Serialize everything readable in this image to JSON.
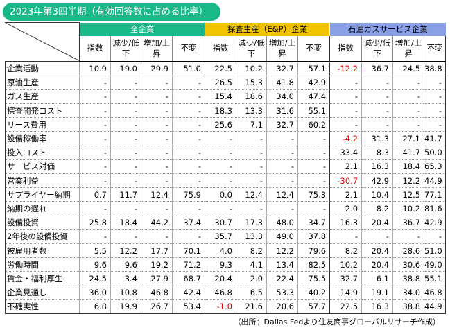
{
  "title": "2023年第3四半期（有効回答数に占める比率）",
  "groups": [
    "全企業",
    "探査生産（E&P）企業",
    "石油ガスサービス企業"
  ],
  "subheaders": [
    "指数",
    "減少/低下",
    "増加/上昇",
    "不変"
  ],
  "rows": [
    {
      "label": "企業活動",
      "cells": [
        "10.9",
        "19.0",
        "29.9",
        "51.0",
        "22.5",
        "10.2",
        "32.7",
        "57.1",
        "-12.2",
        "36.7",
        "24.5",
        "38.8"
      ]
    },
    {
      "label": "原油生産",
      "cells": [
        "-",
        "-",
        "-",
        "-",
        "26.5",
        "15.3",
        "41.8",
        "42.9",
        "-",
        "-",
        "-",
        "-"
      ]
    },
    {
      "label": "ガス生産",
      "cells": [
        "-",
        "-",
        "-",
        "-",
        "15.4",
        "18.6",
        "34.0",
        "47.4",
        "-",
        "-",
        "-",
        "-"
      ]
    },
    {
      "label": "探査開発コスト",
      "cells": [
        "-",
        "-",
        "-",
        "-",
        "18.3",
        "13.3",
        "31.6",
        "55.1",
        "-",
        "-",
        "-",
        "-"
      ]
    },
    {
      "label": "リース費用",
      "cells": [
        "-",
        "-",
        "-",
        "-",
        "25.6",
        "7.1",
        "32.7",
        "60.2",
        "-",
        "-",
        "-",
        "-"
      ]
    },
    {
      "label": "設備稼働率",
      "cells": [
        "-",
        "-",
        "-",
        "-",
        "-",
        "-",
        "-",
        "-",
        "-4.2",
        "31.3",
        "27.1",
        "41.7"
      ]
    },
    {
      "label": "投入コスト",
      "cells": [
        "-",
        "-",
        "-",
        "-",
        "-",
        "-",
        "-",
        "-",
        "33.4",
        "8.3",
        "41.7",
        "50.0"
      ]
    },
    {
      "label": "サービス対価",
      "cells": [
        "-",
        "-",
        "-",
        "-",
        "-",
        "-",
        "-",
        "-",
        "2.1",
        "16.3",
        "18.4",
        "65.3"
      ]
    },
    {
      "label": "営業利益",
      "cells": [
        "-",
        "-",
        "-",
        "-",
        "-",
        "-",
        "-",
        "-",
        "-30.7",
        "42.9",
        "12.2",
        "44.9"
      ]
    },
    {
      "label": "サプライヤー納期",
      "cells": [
        "0.7",
        "11.7",
        "12.4",
        "75.9",
        "0.0",
        "12.4",
        "12.4",
        "75.3",
        "2.1",
        "10.4",
        "12.5",
        "77.1"
      ]
    },
    {
      "label": "納期の遅れ",
      "cells": [
        "-",
        "-",
        "-",
        "-",
        "-",
        "-",
        "-",
        "-",
        "2.0",
        "8.2",
        "10.2",
        "81.6"
      ]
    },
    {
      "label": "設備投資",
      "cells": [
        "25.8",
        "18.4",
        "44.2",
        "37.4",
        "30.7",
        "17.3",
        "48.0",
        "34.7",
        "16.3",
        "20.4",
        "36.7",
        "42.9"
      ]
    },
    {
      "label": "2年後の設備投資",
      "cells": [
        "-",
        "-",
        "-",
        "-",
        "35.7",
        "13.3",
        "49.0",
        "37.8",
        "-",
        "-",
        "-",
        "-"
      ]
    },
    {
      "label": "被雇用者数",
      "cells": [
        "5.5",
        "12.2",
        "17.7",
        "70.1",
        "4.0",
        "8.2",
        "12.2",
        "79.6",
        "8.2",
        "20.4",
        "28.6",
        "51.0"
      ]
    },
    {
      "label": "労働時間",
      "cells": [
        "9.6",
        "9.6",
        "19.2",
        "71.2",
        "9.3",
        "4.1",
        "13.4",
        "82.5",
        "10.2",
        "20.4",
        "30.6",
        "49.0"
      ]
    },
    {
      "label": "賃金・福利厚生",
      "cells": [
        "24.5",
        "3.4",
        "27.9",
        "68.7",
        "20.4",
        "2.0",
        "22.4",
        "75.5",
        "32.7",
        "6.1",
        "38.8",
        "55.1"
      ]
    },
    {
      "label": "企業見通し",
      "cells": [
        "36.0",
        "10.8",
        "46.8",
        "42.4",
        "46.8",
        "6.5",
        "53.3",
        "40.2",
        "14.9",
        "19.1",
        "34.0",
        "46.8"
      ]
    },
    {
      "label": "不確実性",
      "cells": [
        "6.8",
        "19.9",
        "26.7",
        "53.4",
        "-1.0",
        "21.6",
        "20.6",
        "57.7",
        "22.5",
        "16.3",
        "38.8",
        "44.9"
      ]
    }
  ],
  "source": "（出所：Dallas Fedより住友商事グローバルリサーチ作成）"
}
